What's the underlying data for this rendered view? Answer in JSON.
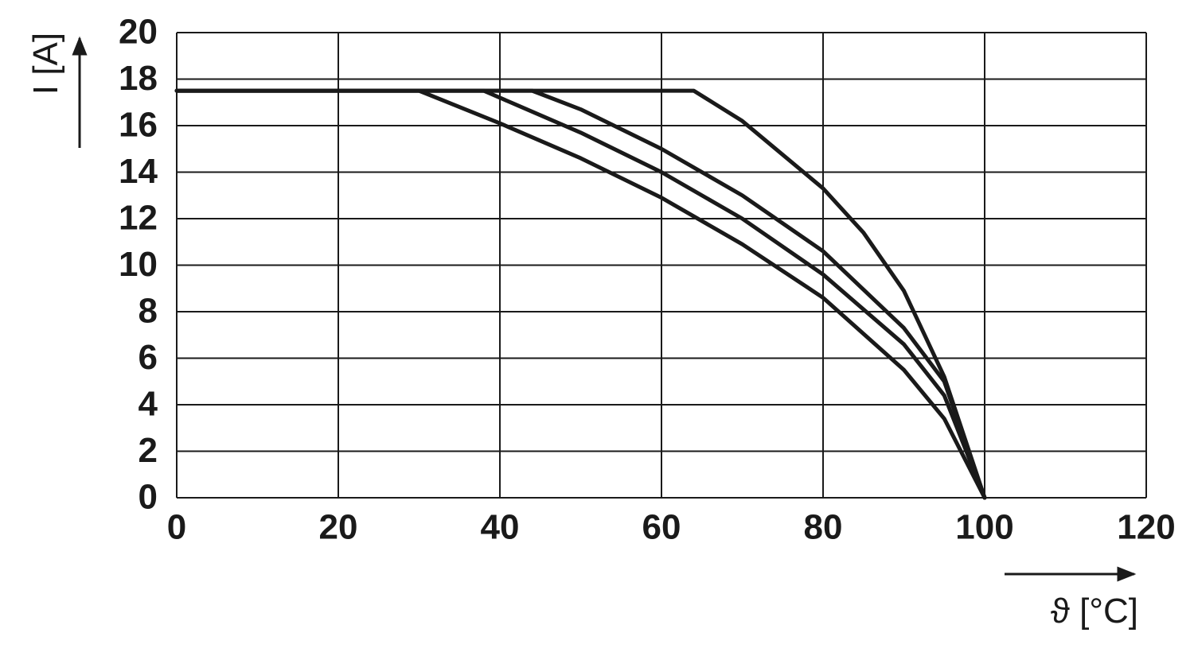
{
  "chart_data": {
    "type": "line",
    "x_label": "ϑ [°C]",
    "y_label": "I [A]",
    "xlim": [
      0,
      120
    ],
    "xticks": [
      0,
      20,
      40,
      60,
      80,
      100,
      120
    ],
    "ylim": [
      0,
      20
    ],
    "yticks": [
      0,
      2,
      4,
      6,
      8,
      10,
      12,
      14,
      16,
      18,
      20
    ],
    "grid": true,
    "series": [
      {
        "color": "#1a1a1a",
        "x": [
          0,
          30,
          40,
          50,
          60,
          70,
          80,
          90,
          95,
          100
        ],
        "values": [
          17.5,
          17.5,
          16.1,
          14.6,
          12.9,
          10.9,
          8.6,
          5.5,
          3.4,
          0
        ]
      },
      {
        "color": "#1a1a1a",
        "x": [
          0,
          38,
          50,
          60,
          70,
          80,
          90,
          95,
          100
        ],
        "values": [
          17.5,
          17.5,
          15.7,
          14.0,
          12.0,
          9.6,
          6.6,
          4.4,
          0
        ]
      },
      {
        "color": "#1a1a1a",
        "x": [
          0,
          44,
          50,
          60,
          70,
          80,
          90,
          95,
          100
        ],
        "values": [
          17.5,
          17.5,
          16.7,
          15.0,
          13.0,
          10.6,
          7.3,
          5.0,
          0
        ]
      },
      {
        "color": "#1a1a1a",
        "x": [
          0,
          64,
          70,
          80,
          85,
          90,
          95,
          100
        ],
        "values": [
          17.5,
          17.5,
          16.2,
          13.3,
          11.4,
          8.9,
          5.2,
          0
        ]
      }
    ]
  }
}
